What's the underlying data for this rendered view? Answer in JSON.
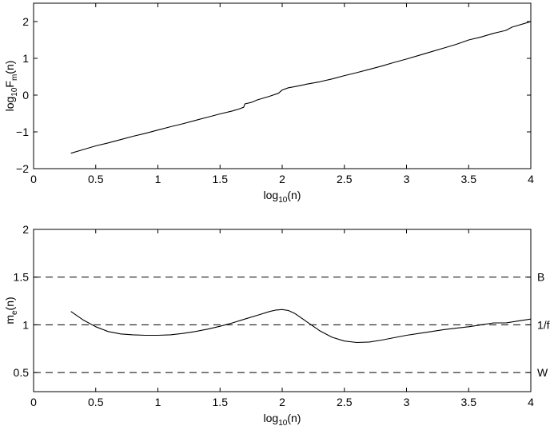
{
  "chart_data": [
    {
      "type": "line",
      "xlabel": {
        "base": "log",
        "sub": "10",
        "rest": "(n)"
      },
      "ylabel": {
        "base": "log",
        "sub1": "10",
        "mid": "F",
        "sub2": "m",
        "rest": "(n)"
      },
      "xlim": [
        0,
        4
      ],
      "ylim": [
        -2,
        2.5
      ],
      "xticks": [
        0,
        0.5,
        1,
        1.5,
        2,
        2.5,
        3,
        3.5,
        4
      ],
      "xtick_labels": [
        "0",
        "0.5",
        "1",
        "1.5",
        "2",
        "2.5",
        "3",
        "3.5",
        "4"
      ],
      "yticks": [
        -2,
        -1,
        0,
        1,
        2
      ],
      "ytick_labels": [
        "−2",
        "−1",
        "0",
        "1",
        "2"
      ],
      "grid": false,
      "series": [
        {
          "color": "#000000",
          "x": [
            0.3,
            0.4,
            0.5,
            0.6,
            0.7,
            0.8,
            0.9,
            1.0,
            1.1,
            1.2,
            1.3,
            1.4,
            1.5,
            1.6,
            1.65,
            1.69,
            1.7,
            1.75,
            1.8,
            1.9,
            1.97,
            2.0,
            2.05,
            2.1,
            2.2,
            2.3,
            2.4,
            2.5,
            2.6,
            2.7,
            2.8,
            2.9,
            3.0,
            3.1,
            3.2,
            3.3,
            3.4,
            3.5,
            3.6,
            3.7,
            3.75,
            3.8,
            3.85,
            3.9,
            3.95,
            4.0
          ],
          "y": [
            -1.58,
            -1.48,
            -1.38,
            -1.3,
            -1.21,
            -1.12,
            -1.04,
            -0.95,
            -0.86,
            -0.78,
            -0.69,
            -0.6,
            -0.51,
            -0.43,
            -0.38,
            -0.33,
            -0.24,
            -0.2,
            -0.13,
            -0.03,
            0.05,
            0.14,
            0.2,
            0.23,
            0.3,
            0.36,
            0.44,
            0.53,
            0.61,
            0.7,
            0.79,
            0.89,
            0.98,
            1.08,
            1.18,
            1.28,
            1.38,
            1.5,
            1.58,
            1.68,
            1.72,
            1.76,
            1.85,
            1.9,
            1.95,
            2.0
          ]
        }
      ]
    },
    {
      "type": "line",
      "xlabel": {
        "base": "log",
        "sub": "10",
        "rest": "(n)"
      },
      "ylabel": {
        "base": "m",
        "sub": "e",
        "rest": "(n)"
      },
      "xlim": [
        0,
        4
      ],
      "ylim": [
        0.3,
        2
      ],
      "xticks": [
        0,
        0.5,
        1,
        1.5,
        2,
        2.5,
        3,
        3.5,
        4
      ],
      "xtick_labels": [
        "0",
        "0.5",
        "1",
        "1.5",
        "2",
        "2.5",
        "3",
        "3.5",
        "4"
      ],
      "yticks": [
        0.5,
        1,
        1.5,
        2
      ],
      "ytick_labels": [
        "0.5",
        "1",
        "1.5",
        "2"
      ],
      "grid": false,
      "reference_lines": [
        {
          "y": 1.5,
          "label": "B",
          "style": "dashed"
        },
        {
          "y": 1.0,
          "label": "1/f",
          "style": "dashed"
        },
        {
          "y": 0.5,
          "label": "W",
          "style": "dashed"
        }
      ],
      "series": [
        {
          "color": "#000000",
          "x": [
            0.3,
            0.4,
            0.5,
            0.6,
            0.7,
            0.8,
            0.9,
            1.0,
            1.1,
            1.2,
            1.3,
            1.4,
            1.5,
            1.6,
            1.7,
            1.8,
            1.9,
            1.95,
            2.0,
            2.05,
            2.1,
            2.2,
            2.3,
            2.4,
            2.5,
            2.6,
            2.7,
            2.8,
            2.9,
            3.0,
            3.1,
            3.2,
            3.3,
            3.4,
            3.5,
            3.6,
            3.7,
            3.8,
            3.9,
            4.0
          ],
          "y": [
            1.14,
            1.05,
            0.98,
            0.93,
            0.905,
            0.895,
            0.89,
            0.89,
            0.895,
            0.91,
            0.93,
            0.955,
            0.985,
            1.02,
            1.06,
            1.1,
            1.14,
            1.155,
            1.16,
            1.15,
            1.12,
            1.03,
            0.94,
            0.87,
            0.83,
            0.815,
            0.82,
            0.84,
            0.865,
            0.89,
            0.91,
            0.93,
            0.95,
            0.965,
            0.98,
            1.0,
            1.02,
            1.02,
            1.04,
            1.06
          ]
        }
      ]
    }
  ]
}
